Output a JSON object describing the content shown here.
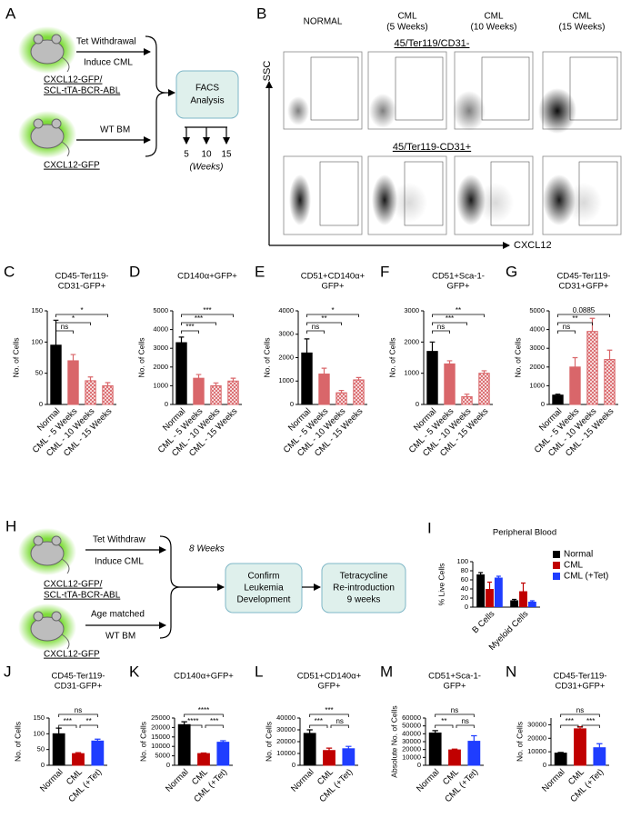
{
  "panel_a": {
    "label": "A",
    "arm_top": [
      "Tet Withdrawal",
      "Induce CML"
    ],
    "mouse_top": [
      "CXCL12-GFP/",
      "SCL-tTA-BCR-ABL"
    ],
    "arm_bottom": "WT BM",
    "mouse_bottom": "CXCL12-GFP",
    "box": [
      "FACS",
      "Analysis"
    ],
    "timepoints": [
      "5",
      "10",
      "15"
    ],
    "unit": "(Weeks)"
  },
  "panel_b": {
    "label": "B",
    "columns": [
      [
        "NORMAL"
      ],
      [
        "CML",
        "(5 Weeks)"
      ],
      [
        "CML",
        "(10 Weeks)"
      ],
      [
        "CML",
        "(15 Weeks)"
      ]
    ],
    "rows": [
      "45/Ter119/CD31-",
      "45/Ter119-CD31+"
    ],
    "y_axis": "SSC",
    "x_axis": "CXCL12"
  },
  "panel_h": {
    "label": "H",
    "arm_top": [
      "Tet Withdraw",
      "Induce CML"
    ],
    "mouse_top": [
      "CXCL12-GFP/",
      "SCL-tTA-BCR-ABL"
    ],
    "arm_bottom": [
      "Age matched",
      "WT BM"
    ],
    "mouse_bottom": "CXCL12-GFP",
    "duration": "8 Weeks",
    "box1": [
      "Confirm",
      "Leukemia",
      "Development"
    ],
    "box2": [
      "Tetracycline",
      "Re-introduction",
      "9 weeks"
    ]
  },
  "chart_data": [
    {
      "label": "C",
      "type": "bar",
      "title": [
        "CD45-Ter119-",
        "CD31-GFP+"
      ],
      "ylabel": "No. of Cells",
      "categories": [
        "Normal",
        "CML - 5 Weeks",
        "CML - 10 Weeks",
        "CML - 15 Weeks"
      ],
      "values": [
        95,
        70,
        38,
        30
      ],
      "errors": [
        40,
        10,
        6,
        5
      ],
      "colors": [
        "#000000",
        "#d9666a",
        "#d9666a",
        "#d9666a"
      ],
      "hatch": [
        false,
        false,
        true,
        true
      ],
      "ylim": [
        0,
        150
      ],
      "yticks": [
        0,
        50,
        100,
        150
      ],
      "significance": [
        "ns",
        "*",
        "*"
      ]
    },
    {
      "label": "D",
      "type": "bar",
      "title": [
        "CD140α+GFP+"
      ],
      "ylabel": "No. of Cells",
      "categories": [
        "Normal",
        "CML - 5 Weeks",
        "CML - 10 Weeks",
        "CML - 15 Weeks"
      ],
      "values": [
        3300,
        1400,
        1000,
        1250
      ],
      "errors": [
        300,
        200,
        150,
        150
      ],
      "colors": [
        "#000000",
        "#d9666a",
        "#d9666a",
        "#d9666a"
      ],
      "hatch": [
        false,
        false,
        true,
        true
      ],
      "ylim": [
        0,
        5000
      ],
      "yticks": [
        0,
        1000,
        2000,
        3000,
        4000,
        5000
      ],
      "significance": [
        "***",
        "***",
        "***"
      ]
    },
    {
      "label": "E",
      "type": "bar",
      "title": [
        "CD51+CD140α+",
        "GFP+"
      ],
      "ylabel": "No. of Cells",
      "categories": [
        "Normal",
        "CML - 5 Weeks",
        "CML - 10 Weeks",
        "CML - 15 Weeks"
      ],
      "values": [
        2200,
        1300,
        500,
        1050
      ],
      "errors": [
        600,
        250,
        100,
        100
      ],
      "colors": [
        "#000000",
        "#d9666a",
        "#d9666a",
        "#d9666a"
      ],
      "hatch": [
        false,
        false,
        true,
        true
      ],
      "ylim": [
        0,
        4000
      ],
      "yticks": [
        0,
        1000,
        2000,
        3000,
        4000
      ],
      "significance": [
        "ns",
        "**",
        "*"
      ]
    },
    {
      "label": "F",
      "type": "bar",
      "title": [
        "CD51+Sca-1-",
        "GFP+"
      ],
      "ylabel": "No. of Cells",
      "categories": [
        "Normal",
        "CML - 5 Weeks",
        "CML - 10 Weeks",
        "CML - 15 Weeks"
      ],
      "values": [
        1700,
        1300,
        250,
        1000
      ],
      "errors": [
        300,
        100,
        80,
        80
      ],
      "colors": [
        "#000000",
        "#d9666a",
        "#d9666a",
        "#d9666a"
      ],
      "hatch": [
        false,
        false,
        true,
        true
      ],
      "ylim": [
        0,
        3000
      ],
      "yticks": [
        0,
        1000,
        2000,
        3000
      ],
      "significance": [
        "ns",
        "***",
        "**"
      ]
    },
    {
      "label": "G",
      "type": "bar",
      "title": [
        "CD45-Ter119-",
        "CD31+GFP+"
      ],
      "ylabel": "No. of Cells",
      "categories": [
        "Normal",
        "CML - 5 Weeks",
        "CML - 10 Weeks",
        "CML - 15 Weeks"
      ],
      "values": [
        500,
        2000,
        3900,
        2400
      ],
      "errors": [
        50,
        500,
        700,
        500
      ],
      "colors": [
        "#000000",
        "#d9666a",
        "#d9666a",
        "#d9666a"
      ],
      "hatch": [
        false,
        false,
        true,
        true
      ],
      "ylim": [
        0,
        5000
      ],
      "yticks": [
        0,
        1000,
        2000,
        3000,
        4000,
        5000
      ],
      "significance": [
        "ns",
        "**",
        "0.0885"
      ]
    },
    {
      "label": "I",
      "type": "bar",
      "title": [
        "Peripheral Blood"
      ],
      "ylabel": "% Live Cells",
      "categories": [
        "B Cells",
        "Myeloid Cells"
      ],
      "series": [
        {
          "name": "Normal",
          "color": "#000000",
          "values": [
            72,
            15
          ],
          "errors": [
            4,
            2
          ]
        },
        {
          "name": "CML",
          "color": "#c00000",
          "values": [
            40,
            35
          ],
          "errors": [
            15,
            18
          ]
        },
        {
          "name": "CML (+Tet)",
          "color": "#1f3dff",
          "values": [
            65,
            12
          ],
          "errors": [
            3,
            2
          ]
        }
      ],
      "ylim": [
        0,
        100
      ],
      "yticks": [
        0,
        20,
        40,
        60,
        80,
        100
      ],
      "legend": "right"
    },
    {
      "label": "J",
      "type": "bar",
      "title": [
        "CD45-Ter119-",
        "CD31-GFP+"
      ],
      "ylabel": "No. of Cells",
      "categories": [
        "Normal",
        "CML",
        "CML (+Tet)"
      ],
      "values": [
        100,
        37,
        77
      ],
      "errors": [
        18,
        3,
        6
      ],
      "colors": [
        "#000000",
        "#c00000",
        "#1f3dff"
      ],
      "hatch": [
        false,
        false,
        false
      ],
      "ylim": [
        0,
        150
      ],
      "yticks": [
        0,
        50,
        100,
        150
      ],
      "significance": [
        "***",
        "**",
        "ns"
      ]
    },
    {
      "label": "K",
      "type": "bar",
      "title": [
        "CD140α+GFP+"
      ],
      "ylabel": "No. of Cells",
      "categories": [
        "Normal",
        "CML",
        "CML (+Tet)"
      ],
      "values": [
        21500,
        6200,
        12200
      ],
      "errors": [
        1500,
        300,
        800
      ],
      "colors": [
        "#000000",
        "#c00000",
        "#1f3dff"
      ],
      "hatch": [
        false,
        false,
        false
      ],
      "ylim": [
        0,
        25000
      ],
      "yticks": [
        0,
        5000,
        10000,
        15000,
        20000,
        25000
      ],
      "significance": [
        "****",
        "***",
        "****"
      ]
    },
    {
      "label": "L",
      "type": "bar",
      "title": [
        "CD51+CD140α+",
        "GFP+"
      ],
      "ylabel": "No. of Cells",
      "categories": [
        "Normal",
        "CML",
        "CML (+Tet)"
      ],
      "values": [
        27000,
        12500,
        14000
      ],
      "errors": [
        3000,
        2000,
        2000
      ],
      "colors": [
        "#000000",
        "#c00000",
        "#1f3dff"
      ],
      "hatch": [
        false,
        false,
        false
      ],
      "ylim": [
        0,
        40000
      ],
      "yticks": [
        0,
        10000,
        20000,
        30000,
        40000
      ],
      "significance": [
        "***",
        "ns",
        "***"
      ]
    },
    {
      "label": "M",
      "type": "bar",
      "title": [
        "CD51+Sca-1-",
        "GFP+"
      ],
      "ylabel": "Absolute No. of Cells",
      "categories": [
        "Normal",
        "CML",
        "CML (+Tet)"
      ],
      "values": [
        41000,
        19500,
        30500
      ],
      "errors": [
        3000,
        1000,
        7000
      ],
      "colors": [
        "#000000",
        "#c00000",
        "#1f3dff"
      ],
      "hatch": [
        false,
        false,
        false
      ],
      "ylim": [
        0,
        60000
      ],
      "yticks": [
        0,
        10000,
        20000,
        30000,
        40000,
        50000,
        60000
      ],
      "significance": [
        "**",
        "ns",
        "ns"
      ]
    },
    {
      "label": "N",
      "type": "bar",
      "title": [
        "CD45-Ter119-",
        "CD31+GFP+"
      ],
      "ylabel": "No. of Cells",
      "categories": [
        "Normal",
        "CML",
        "CML (+Tet)"
      ],
      "values": [
        9000,
        27000,
        13000
      ],
      "errors": [
        500,
        1500,
        3000
      ],
      "colors": [
        "#000000",
        "#c00000",
        "#1f3dff"
      ],
      "hatch": [
        false,
        false,
        false
      ],
      "ylim": [
        0,
        35000
      ],
      "yticks": [
        0,
        10000,
        20000,
        30000
      ],
      "significance": [
        "***",
        "***",
        "ns"
      ]
    }
  ]
}
